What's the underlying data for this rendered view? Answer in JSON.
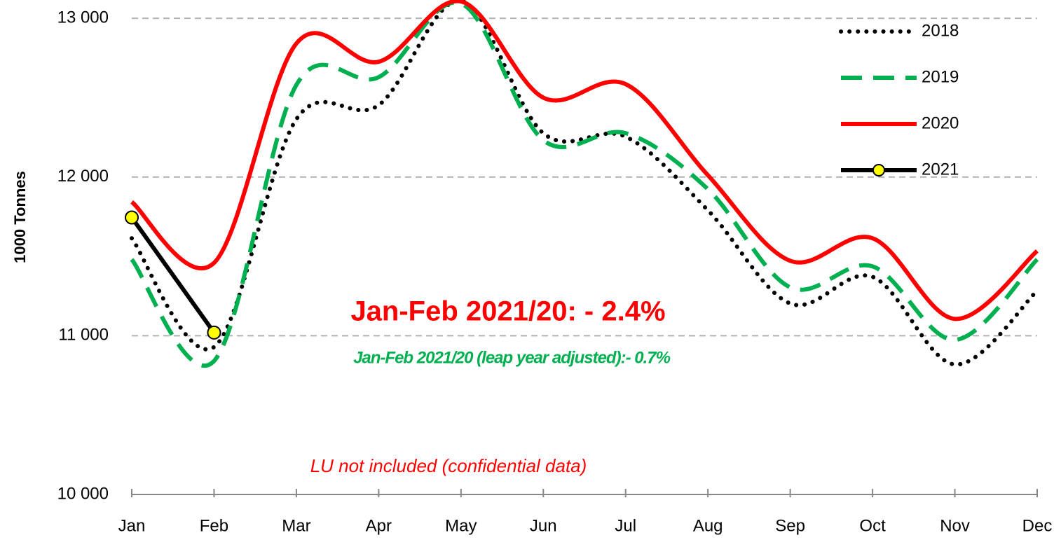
{
  "chart_data": {
    "type": "line",
    "y_label": "1000 Tonnes",
    "categories": [
      "Jan",
      "Feb",
      "Mar",
      "Apr",
      "May",
      "Jun",
      "Jul",
      "Aug",
      "Sep",
      "Oct",
      "Nov",
      "Dec"
    ],
    "series": [
      {
        "name": "2018",
        "color": "#000000",
        "style": "dotted",
        "values": [
          11614,
          10929,
          12364,
          12453,
          13110,
          12276,
          12254,
          11790,
          11203,
          11371,
          10819,
          11283
        ]
      },
      {
        "name": "2019",
        "color": "#00b050",
        "style": "dashed",
        "values": [
          11481,
          10841,
          12580,
          12629,
          13093,
          12232,
          12276,
          11923,
          11305,
          11437,
          10974,
          11481
        ]
      },
      {
        "name": "2020",
        "color": "#ff0000",
        "style": "solid",
        "values": [
          11843,
          11459,
          12841,
          12726,
          13106,
          12500,
          12585,
          12011,
          11472,
          11614,
          11106,
          11534
        ]
      },
      {
        "name": "2021",
        "color": "#000000",
        "style": "markers",
        "marker_color": "#ffff00",
        "values": [
          11745,
          11020,
          null,
          null,
          null,
          null,
          null,
          null,
          null,
          null,
          null,
          null
        ]
      }
    ],
    "ylim": [
      10000,
      13115
    ],
    "yticks": [
      {
        "value": 10000,
        "label": "10 000"
      },
      {
        "value": 11000,
        "label": "11 000"
      },
      {
        "value": 12000,
        "label": "12 000"
      },
      {
        "value": 13000,
        "label": "13 000"
      }
    ],
    "grid": true,
    "legend": "upper right",
    "annotations": [
      "Jan-Feb 2021/20: - 2.4%",
      "Jan-Feb 2021/20 (leap year adjusted):- 0.7%",
      "LU not included (confidential data)"
    ]
  }
}
